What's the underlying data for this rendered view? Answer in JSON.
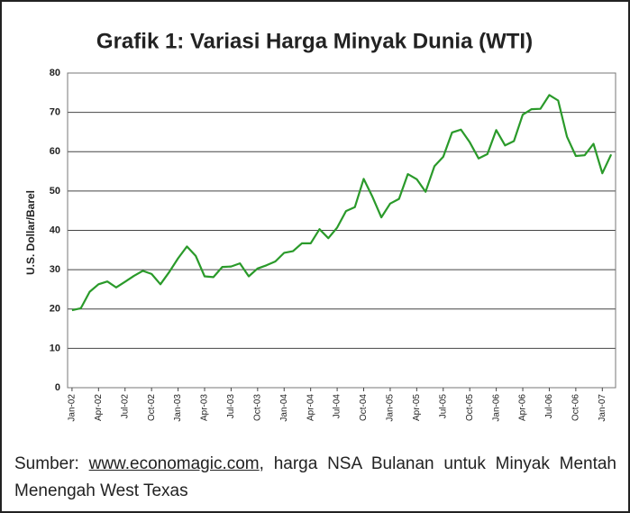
{
  "chart_data": {
    "type": "line",
    "title": "Grafik 1: Variasi Harga Minyak Dunia (WTI)",
    "y_label": "U.S. Dollar/Barel",
    "source_prefix": "Sumber:",
    "source_link": "www.economagic.com",
    "source_text": ", harga NSA Bulanan untuk Minyak Mentah Menengah West Texas",
    "categories": [
      "Jan-02",
      null,
      null,
      "Apr-02",
      null,
      null,
      "Jul-02",
      null,
      null,
      "Oct-02",
      null,
      null,
      "Jan-03",
      null,
      null,
      "Apr-03",
      null,
      null,
      "Jul-03",
      null,
      null,
      "Oct-03",
      null,
      null,
      "Jan-04",
      null,
      null,
      "Apr-04",
      null,
      null,
      "Jul-04",
      null,
      null,
      "Oct-04",
      null,
      null,
      "Jan-05",
      null,
      null,
      "Apr-05",
      null,
      null,
      "Jul-05",
      null,
      null,
      "Oct-05",
      null,
      null,
      "Jan-06",
      null,
      null,
      "Apr-06",
      null,
      null,
      "Jul-06",
      null,
      null,
      "Oct-06",
      null,
      null,
      "Jan-07",
      null
    ],
    "series": [
      {
        "name": "WTI",
        "color": "#2a9a2a",
        "values": [
          19.7,
          20.2,
          24.4,
          26.3,
          27.0,
          25.5,
          26.9,
          28.4,
          29.7,
          28.9,
          26.3,
          29.4,
          32.9,
          35.9,
          33.5,
          28.3,
          28.1,
          30.7,
          30.8,
          31.6,
          28.3,
          30.3,
          31.1,
          32.1,
          34.3,
          34.7,
          36.7,
          36.7,
          40.3,
          38.0,
          40.7,
          44.9,
          45.9,
          53.1,
          48.5,
          43.3,
          46.8,
          48.0,
          54.3,
          53.0,
          49.8,
          56.3,
          58.7,
          64.9,
          65.6,
          62.4,
          58.3,
          59.4,
          65.5,
          61.6,
          62.7,
          69.4,
          70.8,
          70.9,
          74.4,
          73.0,
          63.8,
          58.9,
          59.1,
          62.0,
          54.5,
          59.3
        ]
      }
    ],
    "ylim": [
      0,
      80
    ],
    "yticks": [
      0,
      10,
      20,
      30,
      40,
      50,
      60,
      70,
      80
    ],
    "grid": true
  }
}
